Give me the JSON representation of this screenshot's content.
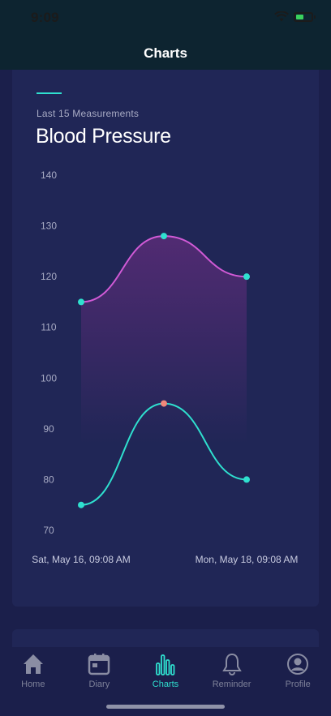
{
  "status_bar": {
    "time": "9:09"
  },
  "header": {
    "title": "Charts"
  },
  "card": {
    "subtitle": "Last 15 Measurements",
    "title": "Blood Pressure"
  },
  "colors": {
    "accent": "#2fe0cf",
    "systolic_line": "#d15ad6",
    "diastolic_line": "#2fe0cf",
    "highlight_point": "#f0887a",
    "card_bg": "#202656"
  },
  "chart_data": {
    "type": "line",
    "title": "Blood Pressure",
    "x": [
      "Sat, May 16, 09:08 AM",
      "",
      "Mon, May 18, 09:08 AM"
    ],
    "x_tick_labels": [
      "Sat, May 16, 09:08 AM",
      "Mon, May 18, 09:08 AM"
    ],
    "y_ticks": [
      140,
      130,
      120,
      110,
      100,
      90,
      80,
      70
    ],
    "ylim": [
      70,
      140
    ],
    "grid": false,
    "series": [
      {
        "values": [
          115,
          128,
          120
        ],
        "color": "#d15ad6",
        "fill": true
      },
      {
        "values": [
          75,
          95,
          80
        ],
        "color": "#2fe0cf",
        "fill": false
      }
    ]
  },
  "tabs": [
    {
      "label": "Home",
      "icon": "home-icon",
      "active": false
    },
    {
      "label": "Diary",
      "icon": "calendar-icon",
      "active": false
    },
    {
      "label": "Charts",
      "icon": "bar-chart-icon",
      "active": true
    },
    {
      "label": "Reminder",
      "icon": "bell-icon",
      "active": false
    },
    {
      "label": "Profile",
      "icon": "profile-icon",
      "active": false
    }
  ]
}
